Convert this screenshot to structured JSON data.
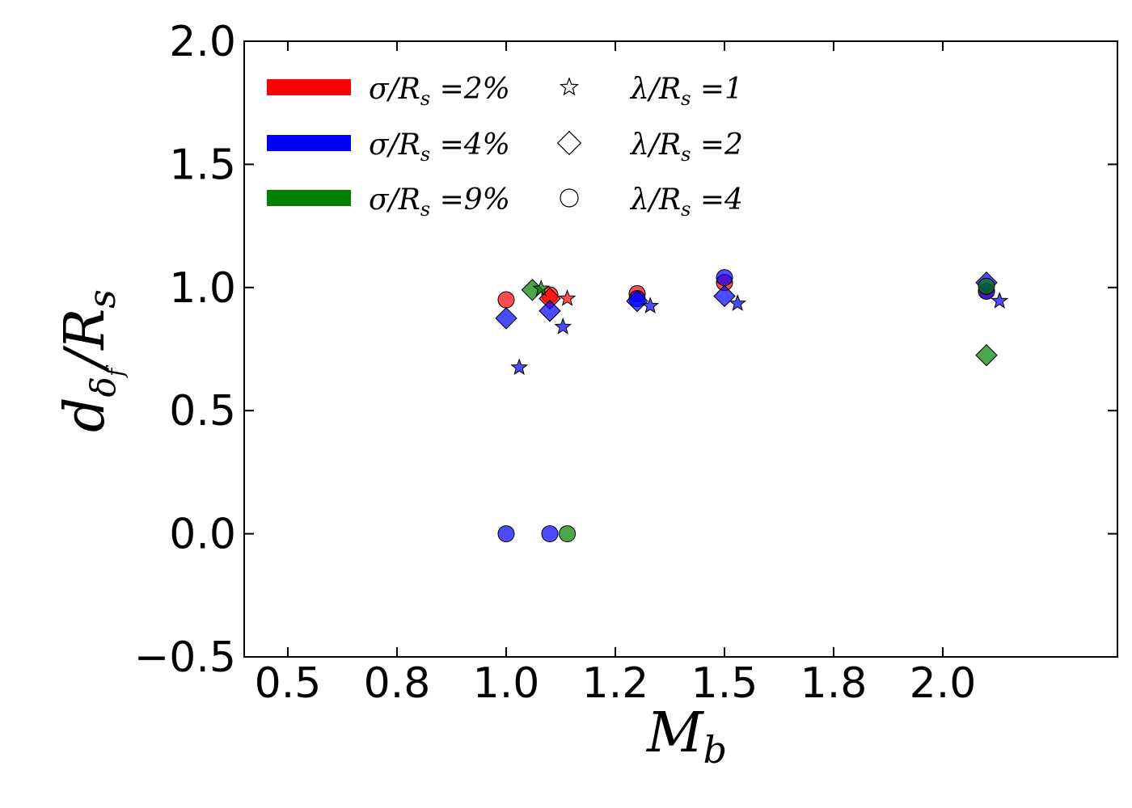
{
  "chart_data": {
    "type": "scatter",
    "xlabel": "M",
    "xlabel_sub": "b",
    "ylabel": "d",
    "ylabel_sub": "δ",
    "ylabel_subsub": "f",
    "ylabel_tail": "/R",
    "ylabel_tail_sub": "s",
    "xlim": [
      0.4,
      2.4
    ],
    "ylim": [
      -0.5,
      2.0
    ],
    "x_ticks": [
      0.5,
      0.75,
      1.0,
      1.25,
      1.5,
      1.75,
      2.0
    ],
    "x_tick_labels": [
      "0.5",
      "0.8",
      "1.0",
      "1.2",
      "1.5",
      "1.8",
      "2.0"
    ],
    "y_ticks": [
      -0.5,
      0.0,
      0.5,
      1.0,
      1.5,
      2.0
    ],
    "y_tick_labels": [
      "−0.5",
      "0.0",
      "0.5",
      "1.0",
      "1.5",
      "2.0"
    ],
    "grid": false,
    "legend_position": "top-left",
    "legend_colors": [
      {
        "label": "σ/R",
        "sub": "s",
        "value": " =2%",
        "color": "#ff0000"
      },
      {
        "label": "σ/R",
        "sub": "s",
        "value": " =4%",
        "color": "#0000ff"
      },
      {
        "label": "σ/R",
        "sub": "s",
        "value": " =9%",
        "color": "#008000"
      }
    ],
    "legend_markers": [
      {
        "label": "λ/R",
        "sub": "s",
        "value": " =1",
        "marker": "star"
      },
      {
        "label": "λ/R",
        "sub": "s",
        "value": " =2",
        "marker": "diamond"
      },
      {
        "label": "λ/R",
        "sub": "s",
        "value": " =4",
        "marker": "circle"
      }
    ],
    "points": [
      {
        "x": 1.0,
        "y": 0.95,
        "color": "#ff0000",
        "marker": "circle"
      },
      {
        "x": 1.1,
        "y": 0.97,
        "color": "#ff0000",
        "marker": "circle"
      },
      {
        "x": 1.3,
        "y": 0.975,
        "color": "#ff0000",
        "marker": "circle"
      },
      {
        "x": 1.5,
        "y": 1.02,
        "color": "#ff0000",
        "marker": "circle"
      },
      {
        "x": 2.1,
        "y": 0.985,
        "color": "#ff0000",
        "marker": "circle"
      },
      {
        "x": 1.1,
        "y": 0.955,
        "color": "#ff0000",
        "marker": "diamond"
      },
      {
        "x": 1.14,
        "y": 0.955,
        "color": "#ff0000",
        "marker": "star"
      },
      {
        "x": 1.0,
        "y": 0.0,
        "color": "#0000ff",
        "marker": "circle"
      },
      {
        "x": 1.1,
        "y": 0.0,
        "color": "#0000ff",
        "marker": "circle"
      },
      {
        "x": 1.3,
        "y": 0.955,
        "color": "#0000ff",
        "marker": "circle"
      },
      {
        "x": 1.5,
        "y": 1.04,
        "color": "#0000ff",
        "marker": "circle"
      },
      {
        "x": 2.1,
        "y": 0.985,
        "color": "#0000ff",
        "marker": "circle"
      },
      {
        "x": 1.0,
        "y": 0.875,
        "color": "#0000ff",
        "marker": "diamond"
      },
      {
        "x": 1.1,
        "y": 0.905,
        "color": "#0000ff",
        "marker": "diamond"
      },
      {
        "x": 1.3,
        "y": 0.945,
        "color": "#0000ff",
        "marker": "diamond"
      },
      {
        "x": 1.5,
        "y": 0.965,
        "color": "#0000ff",
        "marker": "diamond"
      },
      {
        "x": 2.1,
        "y": 1.02,
        "color": "#0000ff",
        "marker": "diamond"
      },
      {
        "x": 1.03,
        "y": 0.675,
        "color": "#0000ff",
        "marker": "star"
      },
      {
        "x": 1.13,
        "y": 0.84,
        "color": "#0000ff",
        "marker": "star"
      },
      {
        "x": 1.33,
        "y": 0.925,
        "color": "#0000ff",
        "marker": "star"
      },
      {
        "x": 1.53,
        "y": 0.935,
        "color": "#0000ff",
        "marker": "star"
      },
      {
        "x": 2.13,
        "y": 0.945,
        "color": "#0000ff",
        "marker": "star"
      },
      {
        "x": 1.14,
        "y": 0.0,
        "color": "#008000",
        "marker": "circle"
      },
      {
        "x": 2.1,
        "y": 1.005,
        "color": "#008000",
        "marker": "circle"
      },
      {
        "x": 1.06,
        "y": 0.99,
        "color": "#008000",
        "marker": "diamond"
      },
      {
        "x": 2.1,
        "y": 0.725,
        "color": "#008000",
        "marker": "diamond"
      },
      {
        "x": 1.08,
        "y": 0.995,
        "color": "#008000",
        "marker": "star"
      }
    ]
  }
}
